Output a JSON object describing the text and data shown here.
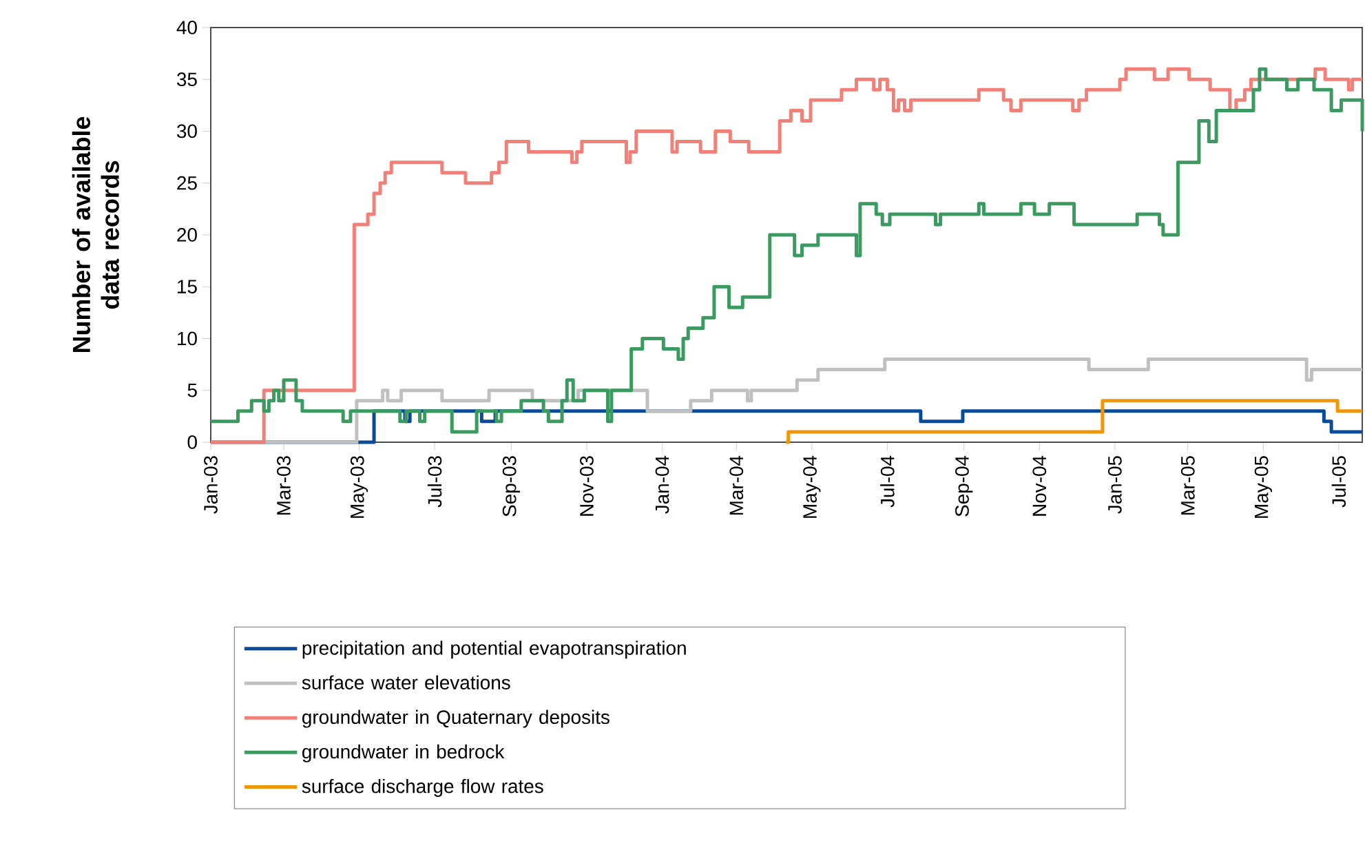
{
  "chart_data": {
    "type": "step",
    "ylabel": "Number of available data records",
    "legend": "bottom",
    "marker": "none",
    "line_style": "solid",
    "grid": false,
    "xlim": [
      "2003-01-01",
      "2005-07-20"
    ],
    "xticks": [
      {
        "value": "2003-01-01",
        "label": "Jan-03"
      },
      {
        "value": "2003-03-01",
        "label": "Mar-03"
      },
      {
        "value": "2003-05-01",
        "label": "May-03"
      },
      {
        "value": "2003-07-01",
        "label": "Jul-03"
      },
      {
        "value": "2003-09-01",
        "label": "Sep-03"
      },
      {
        "value": "2003-11-01",
        "label": "Nov-03"
      },
      {
        "value": "2004-01-01",
        "label": "Jan-04"
      },
      {
        "value": "2004-03-01",
        "label": "Mar-04"
      },
      {
        "value": "2004-05-01",
        "label": "May-04"
      },
      {
        "value": "2004-07-01",
        "label": "Jul-04"
      },
      {
        "value": "2004-09-01",
        "label": "Sep-04"
      },
      {
        "value": "2004-11-01",
        "label": "Nov-04"
      },
      {
        "value": "2005-01-01",
        "label": "Jan-05"
      },
      {
        "value": "2005-03-01",
        "label": "Mar-05"
      },
      {
        "value": "2005-05-01",
        "label": "May-05"
      },
      {
        "value": "2005-07-01",
        "label": "Jul-05"
      }
    ],
    "ylim": [
      0,
      40
    ],
    "yticks": [
      0,
      5,
      10,
      15,
      20,
      25,
      30,
      35,
      40
    ],
    "series": [
      {
        "name": "precipitation and potential evapotranspiration",
        "color": "#0a4a9a",
        "x": [
          "2003-01-01",
          "2003-05-13",
          "2003-06-07",
          "2003-06-11",
          "2003-08-08",
          "2003-08-19",
          "2004-07-28",
          "2004-08-31",
          "2005-06-19",
          "2005-06-25",
          "2005-07-20"
        ],
        "values": [
          0,
          3,
          2,
          3,
          2,
          3,
          2,
          3,
          2,
          1,
          1
        ]
      },
      {
        "name": "surface water elevations",
        "color": "#c0c0c0",
        "x": [
          "2003-01-01",
          "2003-04-29",
          "2003-05-20",
          "2003-05-24",
          "2003-06-04",
          "2003-07-07",
          "2003-08-14",
          "2003-09-18",
          "2003-10-25",
          "2003-12-20",
          "2004-01-24",
          "2004-02-10",
          "2004-03-10",
          "2004-03-13",
          "2004-04-19",
          "2004-05-06",
          "2004-06-29",
          "2004-12-11",
          "2005-01-28",
          "2005-06-05",
          "2005-06-09",
          "2005-07-20"
        ],
        "values": [
          0,
          4,
          5,
          4,
          5,
          4,
          5,
          4,
          5,
          3,
          4,
          5,
          4,
          5,
          6,
          7,
          8,
          7,
          8,
          6,
          7,
          7
        ]
      },
      {
        "name": "groundwater in Quaternary deposits",
        "color": "#f08078",
        "x": [
          "2003-01-01",
          "2003-02-13",
          "2003-04-27",
          "2003-05-08",
          "2003-05-13",
          "2003-05-18",
          "2003-05-22",
          "2003-05-27",
          "2003-07-07",
          "2003-07-26",
          "2003-08-16",
          "2003-08-22",
          "2003-08-28",
          "2003-09-15",
          "2003-10-20",
          "2003-10-24",
          "2003-10-28",
          "2003-12-03",
          "2003-12-06",
          "2003-12-11",
          "2004-01-09",
          "2004-01-13",
          "2004-02-01",
          "2004-02-13",
          "2004-02-25",
          "2004-03-11",
          "2004-04-05",
          "2004-04-14",
          "2004-04-23",
          "2004-04-30",
          "2004-05-25",
          "2004-06-06",
          "2004-06-20",
          "2004-06-25",
          "2004-07-01",
          "2004-07-06",
          "2004-07-10",
          "2004-07-15",
          "2004-07-20",
          "2004-09-13",
          "2004-10-03",
          "2004-10-09",
          "2004-10-17",
          "2004-11-28",
          "2004-12-03",
          "2004-12-09",
          "2005-01-05",
          "2005-01-10",
          "2005-02-02",
          "2005-02-13",
          "2005-03-02",
          "2005-03-19",
          "2005-04-04",
          "2005-04-09",
          "2005-04-16",
          "2005-04-21",
          "2005-06-12",
          "2005-06-20",
          "2005-07-09",
          "2005-07-12",
          "2005-07-20"
        ],
        "values": [
          0,
          5,
          21,
          22,
          24,
          25,
          26,
          27,
          26,
          25,
          26,
          27,
          29,
          28,
          27,
          28,
          29,
          27,
          28,
          30,
          28,
          29,
          28,
          30,
          29,
          28,
          31,
          32,
          31,
          33,
          34,
          35,
          34,
          35,
          34,
          32,
          33,
          32,
          33,
          34,
          33,
          32,
          33,
          32,
          33,
          34,
          35,
          36,
          35,
          36,
          35,
          34,
          32,
          33,
          34,
          35,
          36,
          35,
          34,
          35,
          35
        ]
      },
      {
        "name": "groundwater in bedrock",
        "color": "#3a9a60",
        "x": [
          "2003-01-01",
          "2003-01-23",
          "2003-02-03",
          "2003-02-13",
          "2003-02-17",
          "2003-02-21",
          "2003-02-25",
          "2003-03-01",
          "2003-03-11",
          "2003-03-16",
          "2003-04-18",
          "2003-04-24",
          "2003-06-03",
          "2003-06-08",
          "2003-06-19",
          "2003-06-23",
          "2003-07-15",
          "2003-08-04",
          "2003-08-20",
          "2003-08-24",
          "2003-09-09",
          "2003-09-27",
          "2003-10-01",
          "2003-10-12",
          "2003-10-16",
          "2003-10-21",
          "2003-10-30",
          "2003-11-18",
          "2003-11-21",
          "2003-12-07",
          "2003-12-16",
          "2004-01-02",
          "2004-01-14",
          "2004-01-18",
          "2004-01-22",
          "2004-02-03",
          "2004-02-12",
          "2004-02-24",
          "2004-03-06",
          "2004-03-28",
          "2004-04-17",
          "2004-04-23",
          "2004-05-06",
          "2004-06-06",
          "2004-06-09",
          "2004-06-22",
          "2004-06-27",
          "2004-07-03",
          "2004-08-09",
          "2004-08-13",
          "2004-09-13",
          "2004-09-17",
          "2004-10-17",
          "2004-10-28",
          "2004-11-09",
          "2004-11-29",
          "2005-01-19",
          "2005-02-06",
          "2005-02-09",
          "2005-02-21",
          "2005-03-10",
          "2005-03-18",
          "2005-03-24",
          "2005-04-23",
          "2005-04-28",
          "2005-05-03",
          "2005-05-20",
          "2005-05-29",
          "2005-06-11",
          "2005-06-25",
          "2005-07-03",
          "2005-07-18",
          "2005-07-20"
        ],
        "values": [
          2,
          3,
          4,
          3,
          4,
          5,
          4,
          6,
          4,
          3,
          2,
          3,
          2,
          3,
          2,
          3,
          1,
          3,
          2,
          3,
          4,
          3,
          2,
          4,
          6,
          4,
          5,
          2,
          5,
          9,
          10,
          9,
          8,
          10,
          11,
          12,
          15,
          13,
          14,
          20,
          18,
          19,
          20,
          18,
          23,
          22,
          21,
          22,
          21,
          22,
          23,
          22,
          23,
          22,
          23,
          21,
          22,
          21,
          20,
          27,
          31,
          29,
          32,
          34,
          36,
          35,
          34,
          35,
          34,
          32,
          33,
          33,
          30
        ]
      },
      {
        "name": "surface discharge flow rates",
        "color": "#f0960a",
        "x": [
          "2004-04-10",
          "2004-04-12",
          "2004-12-22",
          "2005-06-30",
          "2005-07-20"
        ],
        "values": [
          0,
          1,
          4,
          3,
          3
        ]
      }
    ]
  }
}
